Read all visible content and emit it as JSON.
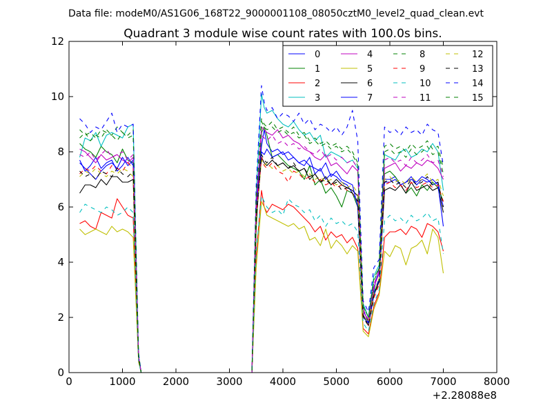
{
  "figure": {
    "header": "Data file: modeM0/AS1G06_168T22_9000001108_08050cztM0_level2_quad_clean.evt",
    "title": "Quadrant 3 module wise count rates with 100.0s bins."
  },
  "chart_data": {
    "type": "line",
    "title": "Quadrant 3 module wise count rates with 100.0s bins.",
    "xlabel": "",
    "ylabel": "",
    "x_offset_label": "+2.28088e8",
    "xlim": [
      0,
      8000
    ],
    "ylim": [
      0,
      12
    ],
    "x_ticks": [
      0,
      1000,
      2000,
      3000,
      4000,
      5000,
      6000,
      7000,
      8000
    ],
    "y_ticks": [
      0,
      2,
      4,
      6,
      8,
      10,
      12
    ],
    "grid": false,
    "legend_position": "top-right",
    "legend_columns": 4,
    "x": [
      200,
      300,
      400,
      500,
      600,
      700,
      800,
      900,
      1000,
      1100,
      1200,
      1300,
      1350,
      1500,
      2000,
      2500,
      3000,
      3300,
      3420,
      3500,
      3600,
      3650,
      3700,
      3800,
      3900,
      4000,
      4100,
      4200,
      4300,
      4400,
      4500,
      4600,
      4700,
      4800,
      4900,
      5000,
      5100,
      5200,
      5300,
      5400,
      5500,
      5600,
      5700,
      5800,
      5900,
      6000,
      6100,
      6200,
      6300,
      6400,
      6500,
      6600,
      6700,
      6800,
      6900,
      7000
    ],
    "series": [
      {
        "name": "0",
        "color": "#0000ff",
        "dash": "solid",
        "values": [
          7.7,
          7.3,
          7.5,
          7.8,
          7.4,
          7.6,
          7.7,
          7.3,
          7.5,
          7.8,
          7.5,
          0.6,
          0,
          0,
          0,
          0,
          0,
          0,
          0,
          6.1,
          8.2,
          8.8,
          8.3,
          8.0,
          8.1,
          7.9,
          8.0,
          7.8,
          7.6,
          7.5,
          7.8,
          7.2,
          7.4,
          7.0,
          7.2,
          7.1,
          6.9,
          6.8,
          6.5,
          6.2,
          2.3,
          1.8,
          3.0,
          3.8,
          7.0,
          7.0,
          7.1,
          6.8,
          6.9,
          7.0,
          6.9,
          7.1,
          7.0,
          6.8,
          6.9,
          6.0
        ]
      },
      {
        "name": "1",
        "color": "#008000",
        "dash": "solid",
        "values": [
          8.3,
          8.1,
          8.0,
          7.8,
          8.2,
          8.0,
          7.9,
          7.6,
          8.1,
          7.7,
          7.6,
          0.6,
          0,
          0,
          0,
          0,
          0,
          0,
          0,
          5.2,
          8.7,
          8.9,
          8.6,
          7.8,
          7.9,
          7.7,
          7.5,
          7.4,
          7.3,
          7.0,
          7.5,
          6.8,
          7.0,
          6.5,
          6.7,
          6.4,
          6.0,
          6.6,
          6.5,
          6.0,
          2.0,
          1.9,
          2.9,
          3.4,
          7.2,
          7.3,
          7.1,
          6.8,
          6.5,
          6.7,
          6.4,
          6.8,
          6.6,
          6.9,
          6.7,
          6.2
        ]
      },
      {
        "name": "2",
        "color": "#ff0000",
        "dash": "solid",
        "values": [
          5.4,
          5.5,
          5.3,
          5.2,
          5.8,
          5.7,
          5.6,
          6.3,
          6.0,
          5.7,
          5.6,
          0.5,
          0,
          0,
          0,
          0,
          0,
          0,
          0,
          4.2,
          6.6,
          6.0,
          5.8,
          6.1,
          6.0,
          5.9,
          6.1,
          6.0,
          5.8,
          5.6,
          5.4,
          5.1,
          5.3,
          4.8,
          5.1,
          4.9,
          5.0,
          4.7,
          4.9,
          4.5,
          1.6,
          1.4,
          2.4,
          2.9,
          4.9,
          5.1,
          5.1,
          5.2,
          5.0,
          5.3,
          5.2,
          4.9,
          5.4,
          5.3,
          5.1,
          4.4
        ]
      },
      {
        "name": "3",
        "color": "#00bfbf",
        "dash": "solid",
        "values": [
          7.8,
          8.5,
          8.4,
          8.7,
          8.2,
          8.6,
          8.7,
          8.6,
          8.5,
          8.9,
          9.0,
          0.6,
          0,
          0,
          0,
          0,
          0,
          0,
          0,
          6.5,
          10.1,
          9.6,
          9.4,
          9.5,
          9.2,
          9.0,
          8.9,
          9.1,
          8.8,
          8.6,
          8.7,
          8.4,
          8.6,
          7.8,
          8.0,
          7.9,
          7.8,
          7.6,
          7.7,
          7.4,
          2.5,
          2.0,
          3.5,
          3.9,
          7.9,
          7.8,
          7.7,
          8.0,
          8.1,
          7.8,
          7.9,
          8.1,
          8.0,
          8.3,
          8.0,
          6.6
        ]
      },
      {
        "name": "4",
        "color": "#bf00bf",
        "dash": "solid",
        "values": [
          8.1,
          8.0,
          7.8,
          7.6,
          7.9,
          7.7,
          7.8,
          7.9,
          7.7,
          7.6,
          7.8,
          0.6,
          0,
          0,
          0,
          0,
          0,
          0,
          0,
          6.0,
          8.9,
          8.8,
          8.7,
          8.6,
          8.8,
          8.5,
          8.6,
          8.4,
          8.3,
          8.1,
          8.0,
          7.8,
          7.7,
          7.9,
          7.5,
          7.6,
          7.4,
          7.2,
          7.5,
          7.3,
          2.2,
          1.9,
          3.1,
          3.6,
          7.4,
          7.5,
          7.6,
          7.3,
          7.5,
          7.4,
          7.6,
          7.5,
          7.7,
          7.6,
          7.4,
          7.0
        ]
      },
      {
        "name": "5",
        "color": "#bfbf00",
        "dash": "solid",
        "values": [
          5.2,
          5.0,
          5.1,
          5.2,
          5.1,
          5.0,
          5.3,
          5.1,
          5.2,
          5.1,
          4.9,
          0.4,
          0,
          0,
          0,
          0,
          0,
          0,
          0,
          3.8,
          6.2,
          6.0,
          5.7,
          5.6,
          5.5,
          5.4,
          5.3,
          5.4,
          5.2,
          5.3,
          4.8,
          4.9,
          4.6,
          5.2,
          4.5,
          4.8,
          4.6,
          4.3,
          4.6,
          4.4,
          1.5,
          1.3,
          2.3,
          2.8,
          4.4,
          4.2,
          4.6,
          4.5,
          3.9,
          4.5,
          4.6,
          4.8,
          4.3,
          5.2,
          4.9,
          3.6
        ]
      },
      {
        "name": "6",
        "color": "#000000",
        "dash": "solid",
        "values": [
          6.5,
          6.8,
          6.8,
          6.7,
          7.0,
          6.8,
          7.1,
          7.1,
          6.9,
          6.9,
          7.0,
          0.5,
          0,
          0,
          0,
          0,
          0,
          0,
          0,
          5.5,
          7.8,
          7.6,
          7.5,
          7.7,
          7.5,
          7.6,
          7.4,
          7.5,
          7.3,
          7.4,
          7.0,
          7.2,
          6.9,
          7.1,
          6.8,
          7.0,
          6.8,
          6.7,
          6.6,
          6.4,
          2.1,
          1.7,
          2.8,
          3.3,
          6.6,
          6.7,
          6.6,
          6.8,
          6.5,
          6.9,
          6.6,
          6.7,
          6.8,
          6.6,
          6.7,
          5.8
        ]
      },
      {
        "name": "7",
        "color": "#0000ff",
        "dash": "solid",
        "values": [
          7.6,
          7.4,
          7.2,
          7.0,
          7.3,
          7.5,
          7.6,
          7.4,
          7.8,
          7.5,
          7.7,
          0.6,
          0,
          0,
          0,
          0,
          0,
          0,
          0,
          5.8,
          8.0,
          7.9,
          8.1,
          7.8,
          7.9,
          8.0,
          7.7,
          7.8,
          7.6,
          7.7,
          7.5,
          7.4,
          7.3,
          7.6,
          7.1,
          7.3,
          7.0,
          6.9,
          6.8,
          6.0,
          2.0,
          1.8,
          2.8,
          3.4,
          6.9,
          6.9,
          7.0,
          6.8,
          6.9,
          7.1,
          6.8,
          7.0,
          6.9,
          7.0,
          6.8,
          5.3
        ]
      },
      {
        "name": "8",
        "color": "#008000",
        "dash": "dashed",
        "values": [
          8.8,
          8.6,
          8.7,
          8.5,
          8.8,
          8.7,
          8.6,
          8.9,
          8.7,
          8.6,
          8.8,
          0.7,
          0,
          0,
          0,
          0,
          0,
          0,
          0,
          6.3,
          9.2,
          9.0,
          8.9,
          9.1,
          8.8,
          8.9,
          8.7,
          8.9,
          8.6,
          8.7,
          8.4,
          8.5,
          8.3,
          8.4,
          8.2,
          8.3,
          8.1,
          8.2,
          8.0,
          7.6,
          2.4,
          2.0,
          3.3,
          3.8,
          8.2,
          8.3,
          8.1,
          8.2,
          8.0,
          8.3,
          8.1,
          8.2,
          8.4,
          8.1,
          8.2,
          7.4
        ]
      },
      {
        "name": "9",
        "color": "#ff0000",
        "dash": "dashed",
        "values": [
          7.2,
          7.4,
          7.3,
          7.5,
          7.3,
          7.2,
          7.5,
          7.4,
          7.3,
          7.6,
          7.4,
          0.5,
          0,
          0,
          0,
          0,
          0,
          0,
          0,
          5.7,
          7.8,
          7.5,
          7.4,
          7.6,
          7.3,
          7.2,
          6.9,
          7.3,
          7.2,
          7.0,
          7.1,
          6.9,
          7.0,
          6.8,
          6.9,
          6.7,
          6.8,
          6.6,
          6.5,
          6.2,
          2.0,
          1.7,
          2.7,
          3.2,
          6.8,
          6.9,
          6.7,
          6.8,
          6.6,
          6.9,
          6.7,
          6.8,
          6.9,
          6.7,
          6.8,
          6.2
        ]
      },
      {
        "name": "10",
        "color": "#00bfbf",
        "dash": "dashed",
        "values": [
          5.8,
          6.1,
          6.0,
          5.9,
          5.8,
          6.0,
          5.9,
          5.7,
          5.8,
          6.0,
          5.8,
          0.4,
          0,
          0,
          0,
          0,
          0,
          0,
          0,
          4.4,
          6.4,
          6.2,
          6.0,
          5.8,
          5.9,
          5.7,
          6.3,
          6.1,
          6.0,
          5.8,
          5.9,
          5.5,
          5.7,
          5.3,
          5.6,
          5.4,
          5.5,
          5.3,
          5.4,
          5.1,
          1.8,
          1.5,
          2.5,
          3.0,
          5.5,
          5.7,
          5.5,
          5.6,
          5.4,
          5.7,
          5.5,
          5.6,
          5.8,
          5.5,
          5.6,
          4.3
        ]
      },
      {
        "name": "11",
        "color": "#bf00bf",
        "dash": "dashed",
        "values": [
          7.9,
          7.8,
          8.0,
          7.7,
          7.9,
          8.1,
          7.8,
          7.9,
          8.0,
          7.7,
          7.9,
          0.6,
          0,
          0,
          0,
          0,
          0,
          0,
          0,
          6.2,
          8.6,
          8.5,
          8.4,
          8.6,
          8.3,
          8.4,
          8.2,
          8.3,
          8.1,
          8.2,
          8.0,
          7.9,
          8.1,
          7.8,
          7.9,
          7.7,
          7.8,
          7.6,
          7.7,
          7.4,
          2.3,
          1.9,
          3.2,
          3.7,
          7.7,
          7.8,
          7.6,
          7.7,
          7.5,
          7.8,
          7.6,
          7.7,
          7.9,
          7.6,
          7.7,
          7.1
        ]
      },
      {
        "name": "12",
        "color": "#bfbf00",
        "dash": "dashed",
        "values": [
          7.1,
          7.3,
          7.2,
          7.4,
          7.2,
          7.1,
          7.3,
          7.2,
          7.4,
          7.3,
          7.1,
          0.5,
          0,
          0,
          0,
          0,
          0,
          0,
          0,
          5.6,
          7.7,
          7.5,
          7.6,
          7.4,
          7.5,
          7.3,
          7.4,
          7.2,
          7.3,
          7.1,
          7.2,
          7.0,
          7.1,
          6.9,
          7.0,
          6.8,
          6.9,
          6.7,
          6.8,
          6.5,
          2.1,
          1.8,
          2.9,
          3.4,
          7.0,
          7.1,
          6.9,
          7.0,
          6.8,
          7.1,
          6.9,
          7.0,
          7.2,
          6.9,
          7.0,
          6.4
        ]
      },
      {
        "name": "13",
        "color": "#000000",
        "dash": "dashed",
        "values": [
          7.3,
          7.1,
          7.2,
          7.0,
          7.3,
          7.2,
          7.1,
          7.4,
          7.2,
          7.1,
          7.3,
          0.5,
          0,
          0,
          0,
          0,
          0,
          0,
          0,
          5.6,
          7.9,
          7.7,
          7.6,
          7.8,
          7.5,
          7.6,
          7.4,
          7.6,
          7.3,
          7.4,
          7.1,
          7.2,
          6.9,
          7.0,
          6.8,
          6.9,
          6.6,
          6.7,
          6.5,
          6.2,
          2.0,
          1.7,
          2.8,
          3.3,
          6.9,
          7.0,
          6.8,
          6.9,
          6.7,
          7.0,
          6.8,
          6.9,
          7.1,
          6.8,
          6.9,
          6.0
        ]
      },
      {
        "name": "14",
        "color": "#0000ff",
        "dash": "dashed",
        "values": [
          9.2,
          9.0,
          8.7,
          8.9,
          8.8,
          9.1,
          9.4,
          8.7,
          9.0,
          8.9,
          9.0,
          0.7,
          0,
          0,
          0,
          0,
          0,
          0,
          0,
          6.8,
          10.4,
          9.8,
          9.5,
          9.6,
          9.2,
          9.4,
          9.3,
          9.1,
          9.4,
          9.0,
          9.2,
          8.8,
          9.0,
          8.9,
          8.7,
          8.9,
          8.6,
          8.9,
          9.5,
          8.4,
          2.6,
          2.2,
          3.8,
          4.1,
          8.9,
          8.7,
          8.8,
          8.6,
          8.9,
          8.7,
          8.8,
          8.6,
          9.0,
          8.8,
          8.7,
          7.5
        ]
      },
      {
        "name": "15",
        "color": "#008000",
        "dash": "dashed",
        "values": [
          8.5,
          8.7,
          8.4,
          8.6,
          8.5,
          8.8,
          8.6,
          8.4,
          8.7,
          8.5,
          8.6,
          0.6,
          0,
          0,
          0,
          0,
          0,
          0,
          0,
          6.4,
          9.1,
          8.9,
          8.8,
          8.9,
          8.7,
          8.8,
          8.6,
          8.7,
          8.5,
          8.6,
          8.3,
          8.4,
          8.2,
          8.3,
          8.1,
          8.2,
          8.0,
          8.1,
          7.9,
          7.5,
          2.4,
          2.0,
          3.4,
          3.8,
          8.0,
          8.1,
          7.9,
          8.0,
          7.8,
          8.1,
          7.9,
          8.0,
          8.2,
          7.9,
          8.0,
          7.2
        ]
      }
    ]
  }
}
